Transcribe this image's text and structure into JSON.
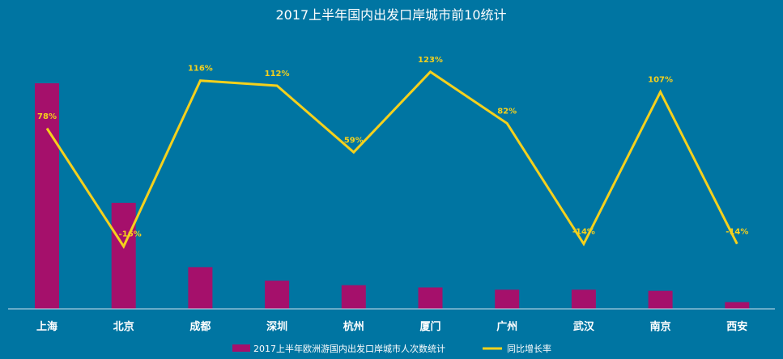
{
  "chart_data": {
    "type": "bar",
    "title": "2017上半年国内出发口岸城市前10统计",
    "categories": [
      "上海",
      "北京",
      "成都",
      "深圳",
      "杭州",
      "厦门",
      "广州",
      "武汉",
      "南京",
      "西安"
    ],
    "series": [
      {
        "name": "2017上半年欧洲游国内出发口岸城市人次数统计",
        "type": "bar",
        "axis": "left",
        "values": [
          100,
          47,
          18.5,
          12.5,
          10.5,
          9.5,
          8.5,
          8.5,
          8,
          3
        ],
        "data_labels": [],
        "color": "#a5106b"
      },
      {
        "name": "同比增长率",
        "type": "line",
        "axis": "right",
        "values": [
          78,
          -16,
          116,
          112,
          59,
          123,
          82,
          -14,
          107,
          -14
        ],
        "data_labels": [
          "78%",
          "-16%",
          "116%",
          "112%",
          "59%",
          "123%",
          "82%",
          "-14%",
          "107%",
          "-14%"
        ],
        "color": "#f5d11c"
      }
    ],
    "ylim": [
      0,
      100
    ],
    "y2lim": [
      -40,
      130
    ],
    "xlabel": "",
    "ylabel": "",
    "legend_position": "bottom",
    "grid": false
  },
  "colors": {
    "background": "#0075a2",
    "text": "#ffffff",
    "axis": "#cfe3ee"
  }
}
